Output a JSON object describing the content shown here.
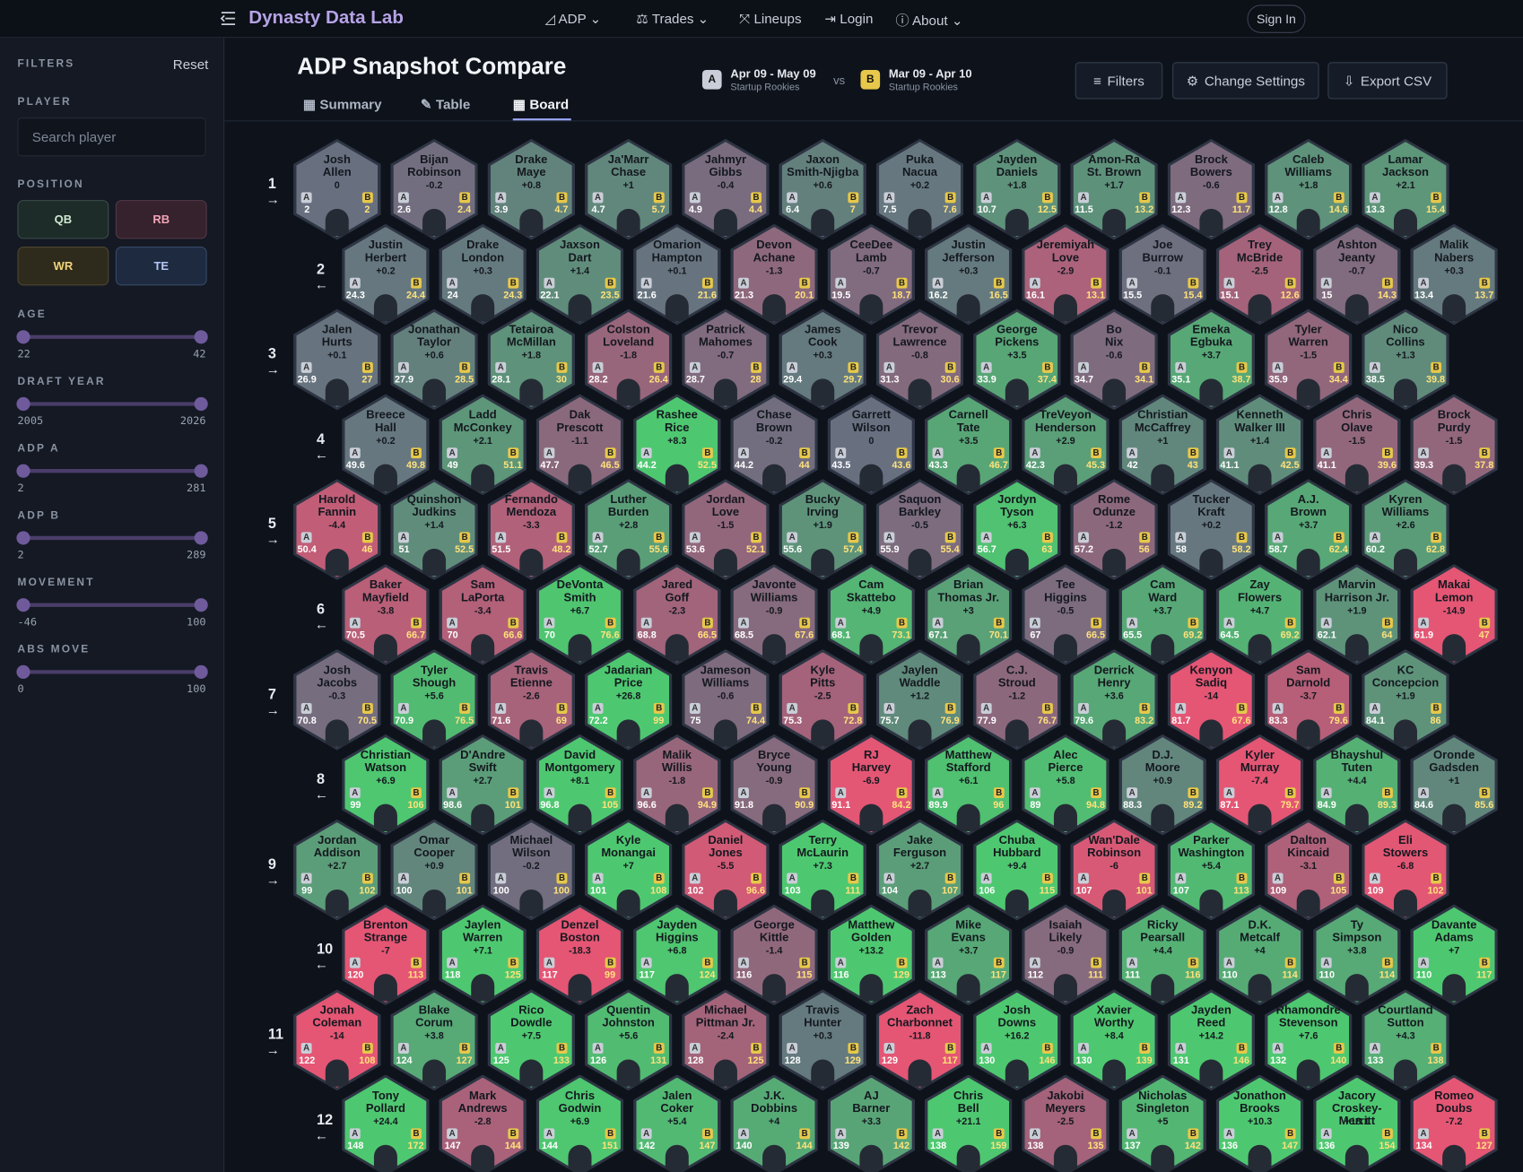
{
  "nav": {
    "brand": "Dynasty Data Lab",
    "items": [
      "ADP",
      "Trades",
      "Lineups",
      "Login",
      "About"
    ],
    "sign_in": "Sign In"
  },
  "sidebar": {
    "title": "FILTERS",
    "reset": "Reset",
    "player_label": "PLAYER",
    "search_placeholder": "Search player",
    "position_label": "POSITION",
    "positions": [
      "QB",
      "RB",
      "WR",
      "TE"
    ],
    "sliders": [
      {
        "label": "AGE",
        "min": "22",
        "max": "42"
      },
      {
        "label": "DRAFT YEAR",
        "min": "2005",
        "max": "2026"
      },
      {
        "label": "ADP A",
        "min": "2",
        "max": "281"
      },
      {
        "label": "ADP B",
        "min": "2",
        "max": "289"
      },
      {
        "label": "MOVEMENT",
        "min": "-46",
        "max": "100"
      },
      {
        "label": "ABS MOVE",
        "min": "0",
        "max": "100"
      }
    ]
  },
  "header": {
    "title": "ADP Snapshot Compare",
    "tabs": [
      "Summary",
      "Table",
      "Board"
    ],
    "active_tab": 2,
    "snap_a": {
      "badge": "A",
      "range": "Apr 09 - May 09",
      "label": "Startup Rookies"
    },
    "vs": "vs",
    "snap_b": {
      "badge": "B",
      "range": "Mar 09 - Apr 10",
      "label": "Startup Rookies"
    },
    "buttons": [
      "Filters",
      "Change Settings",
      "Export CSV"
    ]
  },
  "board": {
    "a_letter": "A",
    "b_letter": "B",
    "rows": [
      {
        "rank": "1",
        "arrow": "→",
        "players": [
          [
            "Josh Allen",
            "0",
            2,
            2
          ],
          [
            "Bijan Robinson",
            "-0.2",
            2.6,
            2.4
          ],
          [
            "Drake Maye",
            "+0.8",
            3.9,
            4.7
          ],
          [
            "Ja'Marr Chase",
            "+1",
            4.7,
            5.7
          ],
          [
            "Jahmyr Gibbs",
            "-0.4",
            4.9,
            4.4
          ],
          [
            "Jaxon Smith-Njigba",
            "+0.6",
            6.4,
            7
          ],
          [
            "Puka Nacua",
            "+0.2",
            7.5,
            7.6
          ],
          [
            "Jayden Daniels",
            "+1.8",
            10.7,
            12.5
          ],
          [
            "Amon-Ra St. Brown",
            "+1.7",
            11.5,
            13.2
          ],
          [
            "Brock Bowers",
            "-0.6",
            12.3,
            11.7
          ],
          [
            "Caleb Williams",
            "+1.8",
            12.8,
            14.6
          ],
          [
            "Lamar Jackson",
            "+2.1",
            13.3,
            15.4
          ]
        ]
      },
      {
        "rank": "2",
        "arrow": "←",
        "players": [
          [
            "Justin Herbert",
            "+0.2",
            24.3,
            24.4
          ],
          [
            "Drake London",
            "+0.3",
            24,
            24.3
          ],
          [
            "Jaxson Dart",
            "+1.4",
            22.1,
            23.5
          ],
          [
            "Omarion Hampton",
            "+0.1",
            21.6,
            21.6
          ],
          [
            "Devon Achane",
            "-1.3",
            21.3,
            20.1
          ],
          [
            "CeeDee Lamb",
            "-0.7",
            19.5,
            18.7
          ],
          [
            "Justin Jefferson",
            "+0.3",
            16.2,
            16.5
          ],
          [
            "Jeremiyah Love",
            "-2.9",
            16.1,
            13.1
          ],
          [
            "Joe Burrow",
            "-0.1",
            15.5,
            15.4
          ],
          [
            "Trey McBride",
            "-2.5",
            15.1,
            12.6
          ],
          [
            "Ashton Jeanty",
            "-0.7",
            15,
            14.3
          ],
          [
            "Malik Nabers",
            "+0.3",
            13.4,
            13.7
          ]
        ]
      },
      {
        "rank": "3",
        "arrow": "→",
        "players": [
          [
            "Jalen Hurts",
            "+0.1",
            26.9,
            27
          ],
          [
            "Jonathan Taylor",
            "+0.6",
            27.9,
            28.5
          ],
          [
            "Tetairoa McMillan",
            "+1.8",
            28.1,
            30
          ],
          [
            "Colston Loveland",
            "-1.8",
            28.2,
            26.4
          ],
          [
            "Patrick Mahomes",
            "-0.7",
            28.7,
            28
          ],
          [
            "James Cook",
            "+0.3",
            29.4,
            29.7
          ],
          [
            "Trevor Lawrence",
            "-0.8",
            31.3,
            30.6
          ],
          [
            "George Pickens",
            "+3.5",
            33.9,
            37.4
          ],
          [
            "Bo Nix",
            "-0.6",
            34.7,
            34.1
          ],
          [
            "Emeka Egbuka",
            "+3.7",
            35.1,
            38.7
          ],
          [
            "Tyler Warren",
            "-1.5",
            35.9,
            34.4
          ],
          [
            "Nico Collins",
            "+1.3",
            38.5,
            39.8
          ]
        ]
      },
      {
        "rank": "4",
        "arrow": "←",
        "players": [
          [
            "Breece Hall",
            "+0.2",
            49.6,
            49.8
          ],
          [
            "Ladd McConkey",
            "+2.1",
            49,
            51.1
          ],
          [
            "Dak Prescott",
            "-1.1",
            47.7,
            46.5
          ],
          [
            "Rashee Rice",
            "+8.3",
            44.2,
            52.5
          ],
          [
            "Chase Brown",
            "-0.2",
            44.2,
            44
          ],
          [
            "Garrett Wilson",
            "0",
            43.5,
            43.6
          ],
          [
            "Carnell Tate",
            "+3.5",
            43.3,
            46.7
          ],
          [
            "TreVeyon Henderson",
            "+2.9",
            42.3,
            45.3
          ],
          [
            "Christian McCaffrey",
            "+1",
            42,
            43
          ],
          [
            "Kenneth Walker III",
            "+1.4",
            41.1,
            42.5
          ],
          [
            "Chris Olave",
            "-1.5",
            41.1,
            39.6
          ],
          [
            "Brock Purdy",
            "-1.5",
            39.3,
            37.8
          ]
        ]
      },
      {
        "rank": "5",
        "arrow": "→",
        "players": [
          [
            "Harold Fannin",
            "-4.4",
            50.4,
            46
          ],
          [
            "Quinshon Judkins",
            "+1.4",
            51,
            52.5
          ],
          [
            "Fernando Mendoza",
            "-3.3",
            51.5,
            48.2
          ],
          [
            "Luther Burden",
            "+2.8",
            52.7,
            55.6
          ],
          [
            "Jordan Love",
            "-1.5",
            53.6,
            52.1
          ],
          [
            "Bucky Irving",
            "+1.9",
            55.6,
            57.4
          ],
          [
            "Saquon Barkley",
            "-0.5",
            55.9,
            55.4
          ],
          [
            "Jordyn Tyson",
            "+6.3",
            56.7,
            63
          ],
          [
            "Rome Odunze",
            "-1.2",
            57.2,
            56
          ],
          [
            "Tucker Kraft",
            "+0.2",
            58,
            58.2
          ],
          [
            "A.J. Brown",
            "+3.7",
            58.7,
            62.4
          ],
          [
            "Kyren Williams",
            "+2.6",
            60.2,
            62.8
          ]
        ]
      },
      {
        "rank": "6",
        "arrow": "←",
        "players": [
          [
            "Baker Mayfield",
            "-3.8",
            70.5,
            66.7
          ],
          [
            "Sam LaPorta",
            "-3.4",
            70,
            66.6
          ],
          [
            "DeVonta Smith",
            "+6.7",
            70,
            76.6
          ],
          [
            "Jared Goff",
            "-2.3",
            68.8,
            66.5
          ],
          [
            "Javonte Williams",
            "-0.9",
            68.5,
            67.6
          ],
          [
            "Cam Skattebo",
            "+4.9",
            68.1,
            73.1
          ],
          [
            "Brian Thomas Jr.",
            "+3",
            67.1,
            70.1
          ],
          [
            "Tee Higgins",
            "-0.5",
            67,
            66.5
          ],
          [
            "Cam Ward",
            "+3.7",
            65.5,
            69.2
          ],
          [
            "Zay Flowers",
            "+4.7",
            64.5,
            69.2
          ],
          [
            "Marvin Harrison Jr.",
            "+1.9",
            62.1,
            64
          ],
          [
            "Makai Lemon",
            "-14.9",
            61.9,
            47
          ]
        ]
      },
      {
        "rank": "7",
        "arrow": "→",
        "players": [
          [
            "Josh Jacobs",
            "-0.3",
            70.8,
            70.5
          ],
          [
            "Tyler Shough",
            "+5.6",
            70.9,
            76.5
          ],
          [
            "Travis Etienne",
            "-2.6",
            71.6,
            69
          ],
          [
            "Jadarian Price",
            "+26.8",
            72.2,
            99
          ],
          [
            "Jameson Williams",
            "-0.6",
            75,
            74.4
          ],
          [
            "Kyle Pitts",
            "-2.5",
            75.3,
            72.8
          ],
          [
            "Jaylen Waddle",
            "+1.2",
            75.7,
            76.9
          ],
          [
            "C.J. Stroud",
            "-1.2",
            77.9,
            76.7
          ],
          [
            "Derrick Henry",
            "+3.6",
            79.6,
            83.2
          ],
          [
            "Kenyon Sadiq",
            "-14",
            81.7,
            67.6
          ],
          [
            "Sam Darnold",
            "-3.7",
            83.3,
            79.6
          ],
          [
            "KC Concepcion",
            "+1.9",
            84.1,
            86
          ]
        ]
      },
      {
        "rank": "8",
        "arrow": "←",
        "players": [
          [
            "Christian Watson",
            "+6.9",
            99,
            106
          ],
          [
            "D'Andre Swift",
            "+2.7",
            98.6,
            101
          ],
          [
            "David Montgomery",
            "+8.1",
            96.8,
            105
          ],
          [
            "Malik Willis",
            "-1.8",
            96.6,
            94.9
          ],
          [
            "Bryce Young",
            "-0.9",
            91.8,
            90.9
          ],
          [
            "RJ Harvey",
            "-6.9",
            91.1,
            84.2
          ],
          [
            "Matthew Stafford",
            "+6.1",
            89.9,
            96
          ],
          [
            "Alec Pierce",
            "+5.8",
            89,
            94.8
          ],
          [
            "D.J. Moore",
            "+0.9",
            88.3,
            89.2
          ],
          [
            "Kyler Murray",
            "-7.4",
            87.1,
            79.7
          ],
          [
            "Bhayshul Tuten",
            "+4.4",
            84.9,
            89.3
          ],
          [
            "Oronde Gadsden",
            "+1",
            84.6,
            85.6
          ]
        ]
      },
      {
        "rank": "9",
        "arrow": "→",
        "players": [
          [
            "Jordan Addison",
            "+2.7",
            99,
            102
          ],
          [
            "Omar Cooper",
            "+0.9",
            100,
            101
          ],
          [
            "Michael Wilson",
            "-0.2",
            100,
            100
          ],
          [
            "Kyle Monangai",
            "+7",
            101,
            108
          ],
          [
            "Daniel Jones",
            "-5.5",
            102,
            96.6
          ],
          [
            "Terry McLaurin",
            "+7.3",
            103,
            111
          ],
          [
            "Jake Ferguson",
            "+2.7",
            104,
            107
          ],
          [
            "Chuba Hubbard",
            "+9.4",
            106,
            115
          ],
          [
            "Wan'Dale Robinson",
            "-6",
            107,
            101
          ],
          [
            "Parker Washington",
            "+5.4",
            107,
            113
          ],
          [
            "Dalton Kincaid",
            "-3.1",
            109,
            105
          ],
          [
            "Eli Stowers",
            "-6.8",
            109,
            102
          ]
        ]
      },
      {
        "rank": "10",
        "arrow": "←",
        "players": [
          [
            "Brenton Strange",
            "-7",
            120,
            113
          ],
          [
            "Jaylen Warren",
            "+7.1",
            118,
            125
          ],
          [
            "Denzel Boston",
            "-18.3",
            117,
            99
          ],
          [
            "Jayden Higgins",
            "+6.8",
            117,
            124
          ],
          [
            "George Kittle",
            "-1.4",
            116,
            115
          ],
          [
            "Matthew Golden",
            "+13.2",
            116,
            129
          ],
          [
            "Mike Evans",
            "+3.7",
            113,
            117
          ],
          [
            "Isaiah Likely",
            "-0.9",
            112,
            111
          ],
          [
            "Ricky Pearsall",
            "+4.4",
            111,
            116
          ],
          [
            "D.K. Metcalf",
            "+4",
            110,
            114
          ],
          [
            "Ty Simpson",
            "+3.8",
            110,
            114
          ],
          [
            "Davante Adams",
            "+7",
            110,
            117
          ]
        ]
      },
      {
        "rank": "11",
        "arrow": "→",
        "players": [
          [
            "Jonah Coleman",
            "-14",
            122,
            108
          ],
          [
            "Blake Corum",
            "+3.8",
            124,
            127
          ],
          [
            "Rico Dowdle",
            "+7.5",
            125,
            133
          ],
          [
            "Quentin Johnston",
            "+5.6",
            126,
            131
          ],
          [
            "Michael Pittman Jr.",
            "-2.4",
            128,
            125
          ],
          [
            "Travis Hunter",
            "+0.3",
            128,
            129
          ],
          [
            "Zach Charbonnet",
            "-11.8",
            129,
            117
          ],
          [
            "Josh Downs",
            "+16.2",
            130,
            146
          ],
          [
            "Xavier Worthy",
            "+8.4",
            130,
            139
          ],
          [
            "Jayden Reed",
            "+14.2",
            131,
            146
          ],
          [
            "Rhamondre Stevenson",
            "+7.6",
            132,
            140
          ],
          [
            "Courtland Sutton",
            "+4.3",
            133,
            138
          ]
        ]
      },
      {
        "rank": "12",
        "arrow": "←",
        "players": [
          [
            "Tony Pollard",
            "+24.4",
            148,
            172
          ],
          [
            "Mark Andrews",
            "-2.8",
            147,
            144
          ],
          [
            "Chris Godwin",
            "+6.9",
            144,
            151
          ],
          [
            "Jalen Coker",
            "+5.4",
            142,
            147
          ],
          [
            "J.K. Dobbins",
            "+4",
            140,
            144
          ],
          [
            "AJ Barner",
            "+3.3",
            139,
            142
          ],
          [
            "Chris Bell",
            "+21.1",
            138,
            159
          ],
          [
            "Jakobi Meyers",
            "-2.5",
            138,
            135
          ],
          [
            "Nicholas Singleton",
            "+5",
            137,
            142
          ],
          [
            "Jonathon Brooks",
            "+10.3",
            136,
            147
          ],
          [
            "Jacory Croskey-Merritt",
            "+18.1",
            136,
            154
          ],
          [
            "Romeo Doubs",
            "-7.2",
            134,
            127
          ]
        ]
      }
    ]
  }
}
